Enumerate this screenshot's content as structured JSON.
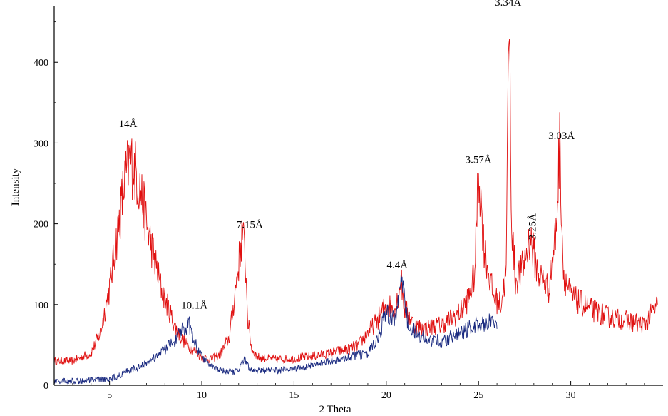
{
  "chart_data": {
    "type": "line",
    "title": "",
    "xlabel": "2 Theta",
    "ylabel": "Intensity",
    "xlim": [
      2,
      35
    ],
    "ylim": [
      0,
      470
    ],
    "xticks": [
      5,
      10,
      15,
      20,
      25,
      30
    ],
    "yticks": [
      0,
      100,
      200,
      300,
      400
    ],
    "grid": false,
    "legend": "none",
    "series": [
      {
        "color": "#e01010",
        "x": [
          2,
          3,
          4,
          4.5,
          5,
          5.5,
          5.8,
          6.1,
          6.4,
          6.7,
          7.0,
          7.4,
          7.8,
          8.2,
          8.6,
          9.0,
          9.5,
          10,
          10.5,
          11,
          11.5,
          12.0,
          12.2,
          12.35,
          12.5,
          12.7,
          13,
          14,
          15,
          16,
          17,
          18,
          18.5,
          19.5,
          20,
          20.5,
          20.8,
          21,
          21.5,
          22,
          23,
          24,
          24.5,
          24.8,
          25.0,
          25.3,
          25.8,
          26.2,
          26.5,
          26.65,
          26.8,
          27.0,
          27.4,
          27.8,
          28.2,
          28.8,
          29.2,
          29.4,
          29.6,
          30,
          31,
          32,
          33,
          34,
          34.7
        ],
        "y": [
          30,
          30,
          40,
          65,
          120,
          200,
          250,
          280,
          265,
          240,
          200,
          160,
          120,
          95,
          70,
          55,
          45,
          35,
          32,
          38,
          60,
          150,
          190,
          160,
          80,
          45,
          35,
          32,
          33,
          36,
          40,
          45,
          50,
          80,
          100,
          95,
          130,
          95,
          75,
          70,
          75,
          90,
          110,
          140,
          270,
          170,
          110,
          100,
          140,
          465,
          200,
          130,
          145,
          185,
          140,
          120,
          190,
          300,
          140,
          110,
          95,
          85,
          80,
          75,
          100
        ]
      },
      {
        "color": "#1a2a80",
        "x": [
          2,
          3,
          4,
          5,
          5.5,
          6,
          6.5,
          7,
          7.5,
          8,
          8.5,
          9.0,
          9.3,
          9.6,
          10,
          10.5,
          11,
          11.5,
          12,
          12.3,
          12.6,
          13,
          14,
          15,
          16,
          17,
          18,
          19,
          19.5,
          20,
          20.5,
          20.8,
          21.2,
          21.8,
          22.5,
          23,
          23.5,
          24,
          24.5,
          25,
          25.5,
          26
        ],
        "y": [
          5,
          5,
          6,
          8,
          12,
          18,
          22,
          28,
          35,
          45,
          55,
          70,
          78,
          55,
          35,
          25,
          18,
          16,
          18,
          35,
          20,
          18,
          18,
          20,
          25,
          30,
          35,
          40,
          55,
          90,
          80,
          130,
          75,
          60,
          55,
          55,
          60,
          65,
          70,
          75,
          80,
          70
        ]
      }
    ],
    "annotations": [
      {
        "text": "14Å",
        "x": 6.0,
        "y": 320
      },
      {
        "text": "10.1Å",
        "x": 9.6,
        "y": 95
      },
      {
        "text": "7.15Å",
        "x": 12.6,
        "y": 195
      },
      {
        "text": "4.4Å",
        "x": 20.6,
        "y": 145
      },
      {
        "text": "3.57Å",
        "x": 25.0,
        "y": 275
      },
      {
        "text": "3.34Å",
        "x": 26.6,
        "y": 470
      },
      {
        "text": "3.25Å",
        "x": 27.9,
        "y": 180,
        "rotate": true
      },
      {
        "text": "3.03Å",
        "x": 29.5,
        "y": 305
      }
    ]
  }
}
